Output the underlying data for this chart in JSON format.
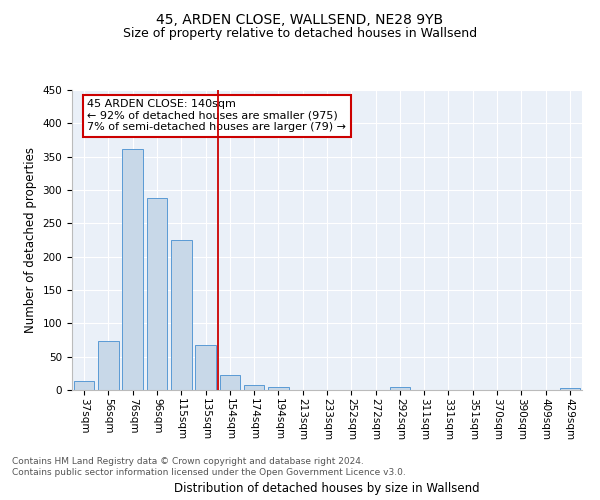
{
  "title": "45, ARDEN CLOSE, WALLSEND, NE28 9YB",
  "subtitle": "Size of property relative to detached houses in Wallsend",
  "xlabel": "Distribution of detached houses by size in Wallsend",
  "ylabel": "Number of detached properties",
  "categories": [
    "37sqm",
    "56sqm",
    "76sqm",
    "96sqm",
    "115sqm",
    "135sqm",
    "154sqm",
    "174sqm",
    "194sqm",
    "213sqm",
    "233sqm",
    "252sqm",
    "272sqm",
    "292sqm",
    "311sqm",
    "331sqm",
    "351sqm",
    "370sqm",
    "390sqm",
    "409sqm",
    "429sqm"
  ],
  "values": [
    14,
    73,
    362,
    288,
    225,
    68,
    22,
    8,
    5,
    0,
    0,
    0,
    0,
    4,
    0,
    0,
    0,
    0,
    0,
    0,
    3
  ],
  "bar_color": "#c8d8e8",
  "bar_edge_color": "#5a9ad5",
  "vline_x": 5.5,
  "vline_color": "#cc0000",
  "annotation_text": "45 ARDEN CLOSE: 140sqm\n← 92% of detached houses are smaller (975)\n7% of semi-detached houses are larger (79) →",
  "annotation_box_color": "#ffffff",
  "annotation_box_edge": "#cc0000",
  "ylim": [
    0,
    450
  ],
  "yticks": [
    0,
    50,
    100,
    150,
    200,
    250,
    300,
    350,
    400,
    450
  ],
  "bg_color": "#eaf0f8",
  "footer_text": "Contains HM Land Registry data © Crown copyright and database right 2024.\nContains public sector information licensed under the Open Government Licence v3.0.",
  "title_fontsize": 10,
  "subtitle_fontsize": 9,
  "xlabel_fontsize": 8.5,
  "ylabel_fontsize": 8.5,
  "tick_fontsize": 7.5,
  "footer_fontsize": 6.5,
  "annotation_fontsize": 8
}
